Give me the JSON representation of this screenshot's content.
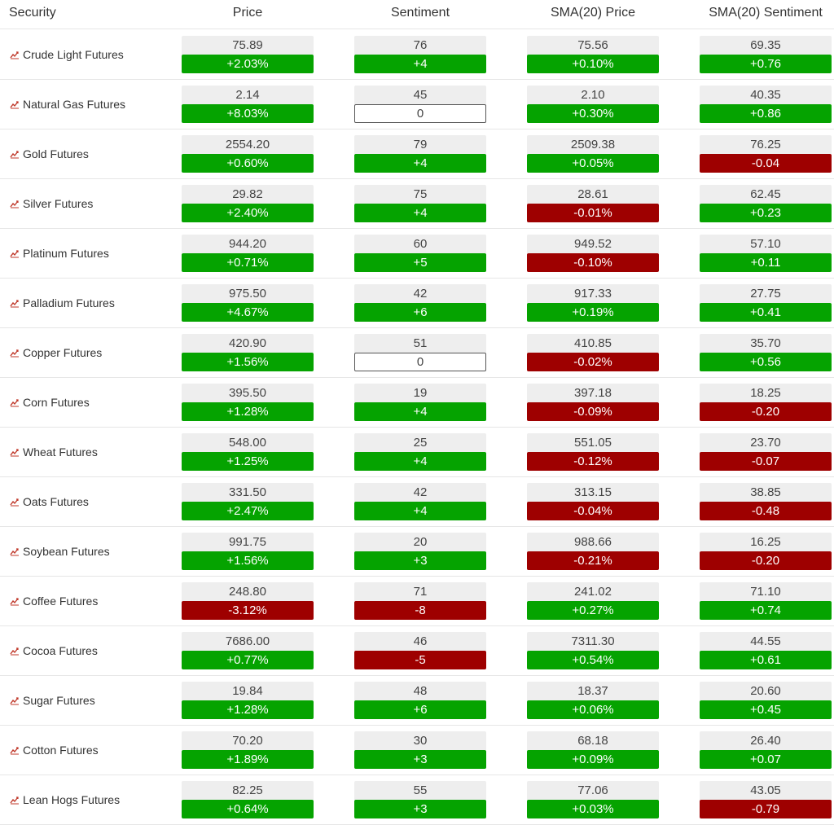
{
  "header": {
    "security": "Security",
    "price": "Price",
    "sentiment": "Sentiment",
    "sma_price": "SMA(20) Price",
    "sma_sentiment": "SMA(20) Sentiment"
  },
  "colors": {
    "up": "#05a300",
    "down": "#9e0000",
    "flat_border": "#555555",
    "value_bg": "#eeeeee",
    "icon": "#c0392b"
  },
  "row_icon": "chart-line-icon",
  "rows": [
    {
      "name": "Crude Light Futures",
      "price": "75.89",
      "price_chg": "+2.03%",
      "sent": "76",
      "sent_chg": "+4",
      "sma_price": "75.56",
      "sma_price_chg": "+0.10%",
      "sma_sent": "69.35",
      "sma_sent_chg": "+0.76"
    },
    {
      "name": "Natural Gas Futures",
      "price": "2.14",
      "price_chg": "+8.03%",
      "sent": "45",
      "sent_chg": "0",
      "sma_price": "2.10",
      "sma_price_chg": "+0.30%",
      "sma_sent": "40.35",
      "sma_sent_chg": "+0.86"
    },
    {
      "name": "Gold Futures",
      "price": "2554.20",
      "price_chg": "+0.60%",
      "sent": "79",
      "sent_chg": "+4",
      "sma_price": "2509.38",
      "sma_price_chg": "+0.05%",
      "sma_sent": "76.25",
      "sma_sent_chg": "-0.04"
    },
    {
      "name": "Silver Futures",
      "price": "29.82",
      "price_chg": "+2.40%",
      "sent": "75",
      "sent_chg": "+4",
      "sma_price": "28.61",
      "sma_price_chg": "-0.01%",
      "sma_sent": "62.45",
      "sma_sent_chg": "+0.23"
    },
    {
      "name": "Platinum Futures",
      "price": "944.20",
      "price_chg": "+0.71%",
      "sent": "60",
      "sent_chg": "+5",
      "sma_price": "949.52",
      "sma_price_chg": "-0.10%",
      "sma_sent": "57.10",
      "sma_sent_chg": "+0.11"
    },
    {
      "name": "Palladium Futures",
      "price": "975.50",
      "price_chg": "+4.67%",
      "sent": "42",
      "sent_chg": "+6",
      "sma_price": "917.33",
      "sma_price_chg": "+0.19%",
      "sma_sent": "27.75",
      "sma_sent_chg": "+0.41"
    },
    {
      "name": "Copper Futures",
      "price": "420.90",
      "price_chg": "+1.56%",
      "sent": "51",
      "sent_chg": "0",
      "sma_price": "410.85",
      "sma_price_chg": "-0.02%",
      "sma_sent": "35.70",
      "sma_sent_chg": "+0.56"
    },
    {
      "name": "Corn Futures",
      "price": "395.50",
      "price_chg": "+1.28%",
      "sent": "19",
      "sent_chg": "+4",
      "sma_price": "397.18",
      "sma_price_chg": "-0.09%",
      "sma_sent": "18.25",
      "sma_sent_chg": "-0.20"
    },
    {
      "name": "Wheat Futures",
      "price": "548.00",
      "price_chg": "+1.25%",
      "sent": "25",
      "sent_chg": "+4",
      "sma_price": "551.05",
      "sma_price_chg": "-0.12%",
      "sma_sent": "23.70",
      "sma_sent_chg": "-0.07"
    },
    {
      "name": "Oats Futures",
      "price": "331.50",
      "price_chg": "+2.47%",
      "sent": "42",
      "sent_chg": "+4",
      "sma_price": "313.15",
      "sma_price_chg": "-0.04%",
      "sma_sent": "38.85",
      "sma_sent_chg": "-0.48"
    },
    {
      "name": "Soybean Futures",
      "price": "991.75",
      "price_chg": "+1.56%",
      "sent": "20",
      "sent_chg": "+3",
      "sma_price": "988.66",
      "sma_price_chg": "-0.21%",
      "sma_sent": "16.25",
      "sma_sent_chg": "-0.20"
    },
    {
      "name": "Coffee Futures",
      "price": "248.80",
      "price_chg": "-3.12%",
      "sent": "71",
      "sent_chg": "-8",
      "sma_price": "241.02",
      "sma_price_chg": "+0.27%",
      "sma_sent": "71.10",
      "sma_sent_chg": "+0.74"
    },
    {
      "name": "Cocoa Futures",
      "price": "7686.00",
      "price_chg": "+0.77%",
      "sent": "46",
      "sent_chg": "-5",
      "sma_price": "7311.30",
      "sma_price_chg": "+0.54%",
      "sma_sent": "44.55",
      "sma_sent_chg": "+0.61"
    },
    {
      "name": "Sugar Futures",
      "price": "19.84",
      "price_chg": "+1.28%",
      "sent": "48",
      "sent_chg": "+6",
      "sma_price": "18.37",
      "sma_price_chg": "+0.06%",
      "sma_sent": "20.60",
      "sma_sent_chg": "+0.45"
    },
    {
      "name": "Cotton Futures",
      "price": "70.20",
      "price_chg": "+1.89%",
      "sent": "30",
      "sent_chg": "+3",
      "sma_price": "68.18",
      "sma_price_chg": "+0.09%",
      "sma_sent": "26.40",
      "sma_sent_chg": "+0.07"
    },
    {
      "name": "Lean Hogs Futures",
      "price": "82.25",
      "price_chg": "+0.64%",
      "sent": "55",
      "sent_chg": "+3",
      "sma_price": "77.06",
      "sma_price_chg": "+0.03%",
      "sma_sent": "43.05",
      "sma_sent_chg": "-0.79"
    }
  ]
}
